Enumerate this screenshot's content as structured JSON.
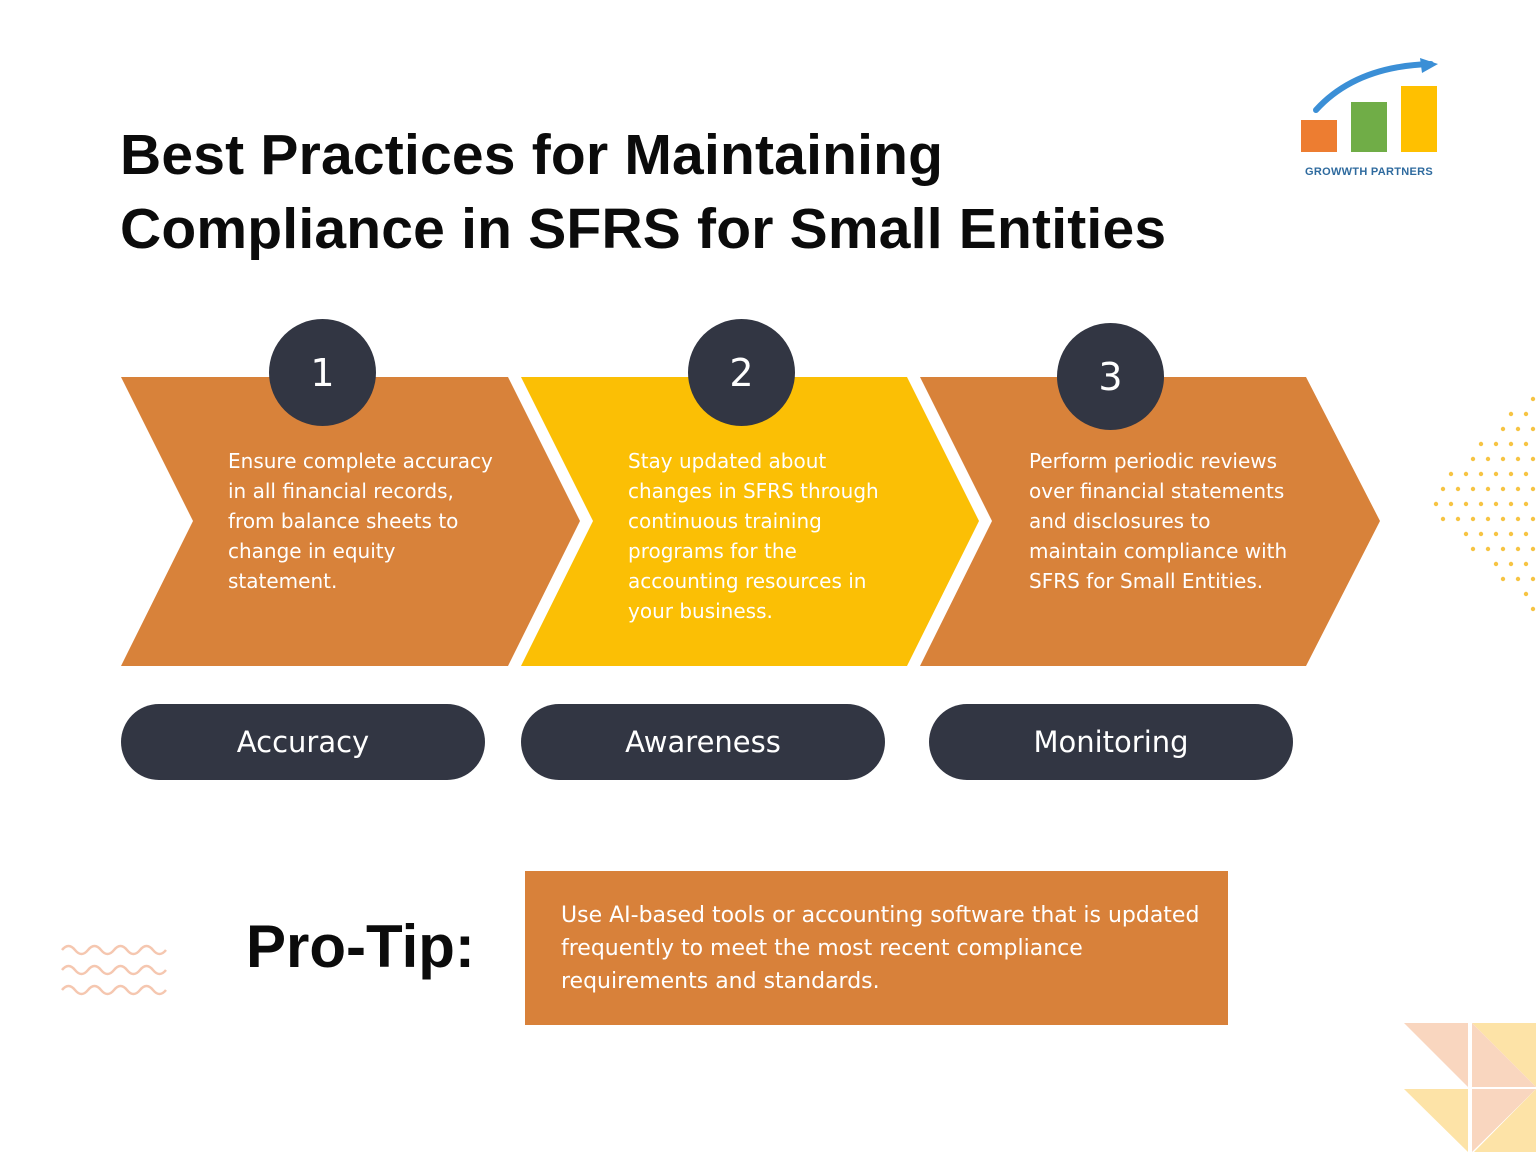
{
  "title": {
    "line1": "Best Practices for Maintaining",
    "line2": "Compliance in SFRS for Small Entities"
  },
  "logo": {
    "text": "GROWWTH PARTNERS",
    "bar_colors": [
      "#ed7d31",
      "#70ad47",
      "#ffc000"
    ],
    "arrow_color": "#3b8fd6"
  },
  "steps": [
    {
      "number": "1",
      "text": "Ensure complete accuracy in all financial records, from balance sheets to change in equity statement.",
      "label": "Accuracy",
      "color": "#d8823a"
    },
    {
      "number": "2",
      "text": "Stay updated about changes in SFRS through continuous training programs for the accounting resources in your business.",
      "label": "Awareness",
      "color": "#fbbf05"
    },
    {
      "number": "3",
      "text": "Perform periodic reviews over financial statements and disclosures to maintain compliance with SFRS for Small Entities.",
      "label": "Monitoring",
      "color": "#d8823a"
    }
  ],
  "pro_tip": {
    "heading": "Pro-Tip:",
    "text": "Use AI-based tools or accounting software that is updated frequently to meet the most recent compliance requirements and standards."
  },
  "colors": {
    "dark": "#323643",
    "orange": "#d8813a",
    "yellow": "#fbbf05",
    "dots": "#f6c443",
    "waves": "#f5c7b0"
  }
}
